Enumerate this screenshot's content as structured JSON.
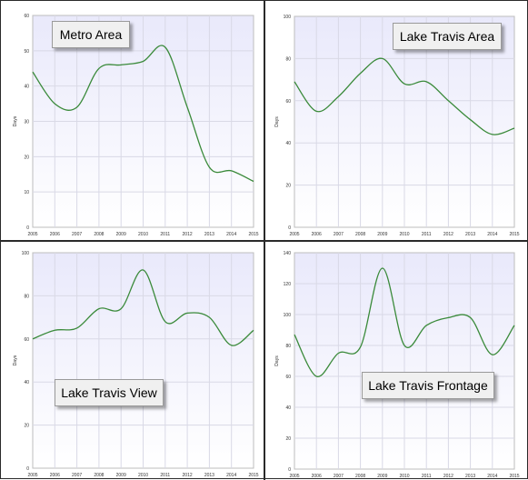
{
  "line_color": "#3a8a3a",
  "plot_top_color": "#e9e9fb",
  "plot_bottom_color": "#ffffff",
  "chart_data": [
    {
      "type": "line",
      "title": "Metro Area",
      "ylabel": "Days",
      "ylim": [
        0,
        60
      ],
      "yticks": [
        0,
        10,
        20,
        30,
        40,
        50,
        60
      ],
      "x_labels": [
        "2005",
        "2006",
        "2007",
        "2008",
        "2009",
        "2010",
        "2011",
        "2012",
        "2013",
        "2014",
        "2015"
      ],
      "values": [
        44,
        35,
        34,
        45,
        46,
        47,
        51,
        34,
        17,
        16,
        13
      ]
    },
    {
      "type": "line",
      "title": "Lake Travis Area",
      "ylabel": "Days",
      "ylim": [
        0,
        100
      ],
      "yticks": [
        0,
        20,
        40,
        60,
        80,
        100
      ],
      "x_labels": [
        "2005",
        "2006",
        "2007",
        "2008",
        "2009",
        "2010",
        "2011",
        "2012",
        "2013",
        "2014",
        "2015"
      ],
      "values": [
        69,
        55,
        62,
        73,
        80,
        68,
        69,
        60,
        51,
        44,
        47
      ]
    },
    {
      "type": "line",
      "title": "Lake Travis View",
      "ylabel": "Days",
      "ylim": [
        0,
        100
      ],
      "yticks": [
        0,
        20,
        40,
        60,
        80,
        100
      ],
      "x_labels": [
        "2005",
        "2006",
        "2007",
        "2008",
        "2009",
        "2010",
        "2011",
        "2012",
        "2013",
        "2014",
        "2015"
      ],
      "values": [
        60,
        64,
        65,
        74,
        74,
        92,
        68,
        72,
        70,
        57,
        64
      ]
    },
    {
      "type": "line",
      "title": "Lake Travis Frontage",
      "ylabel": "Days",
      "ylim": [
        0,
        140
      ],
      "yticks": [
        0,
        20,
        40,
        60,
        80,
        100,
        120,
        140
      ],
      "x_labels": [
        "2005",
        "2006",
        "2007",
        "2008",
        "2009",
        "2010",
        "2011",
        "2012",
        "2013",
        "2014",
        "2015"
      ],
      "values": [
        87,
        60,
        75,
        79,
        130,
        80,
        93,
        98,
        98,
        74,
        93
      ]
    }
  ]
}
